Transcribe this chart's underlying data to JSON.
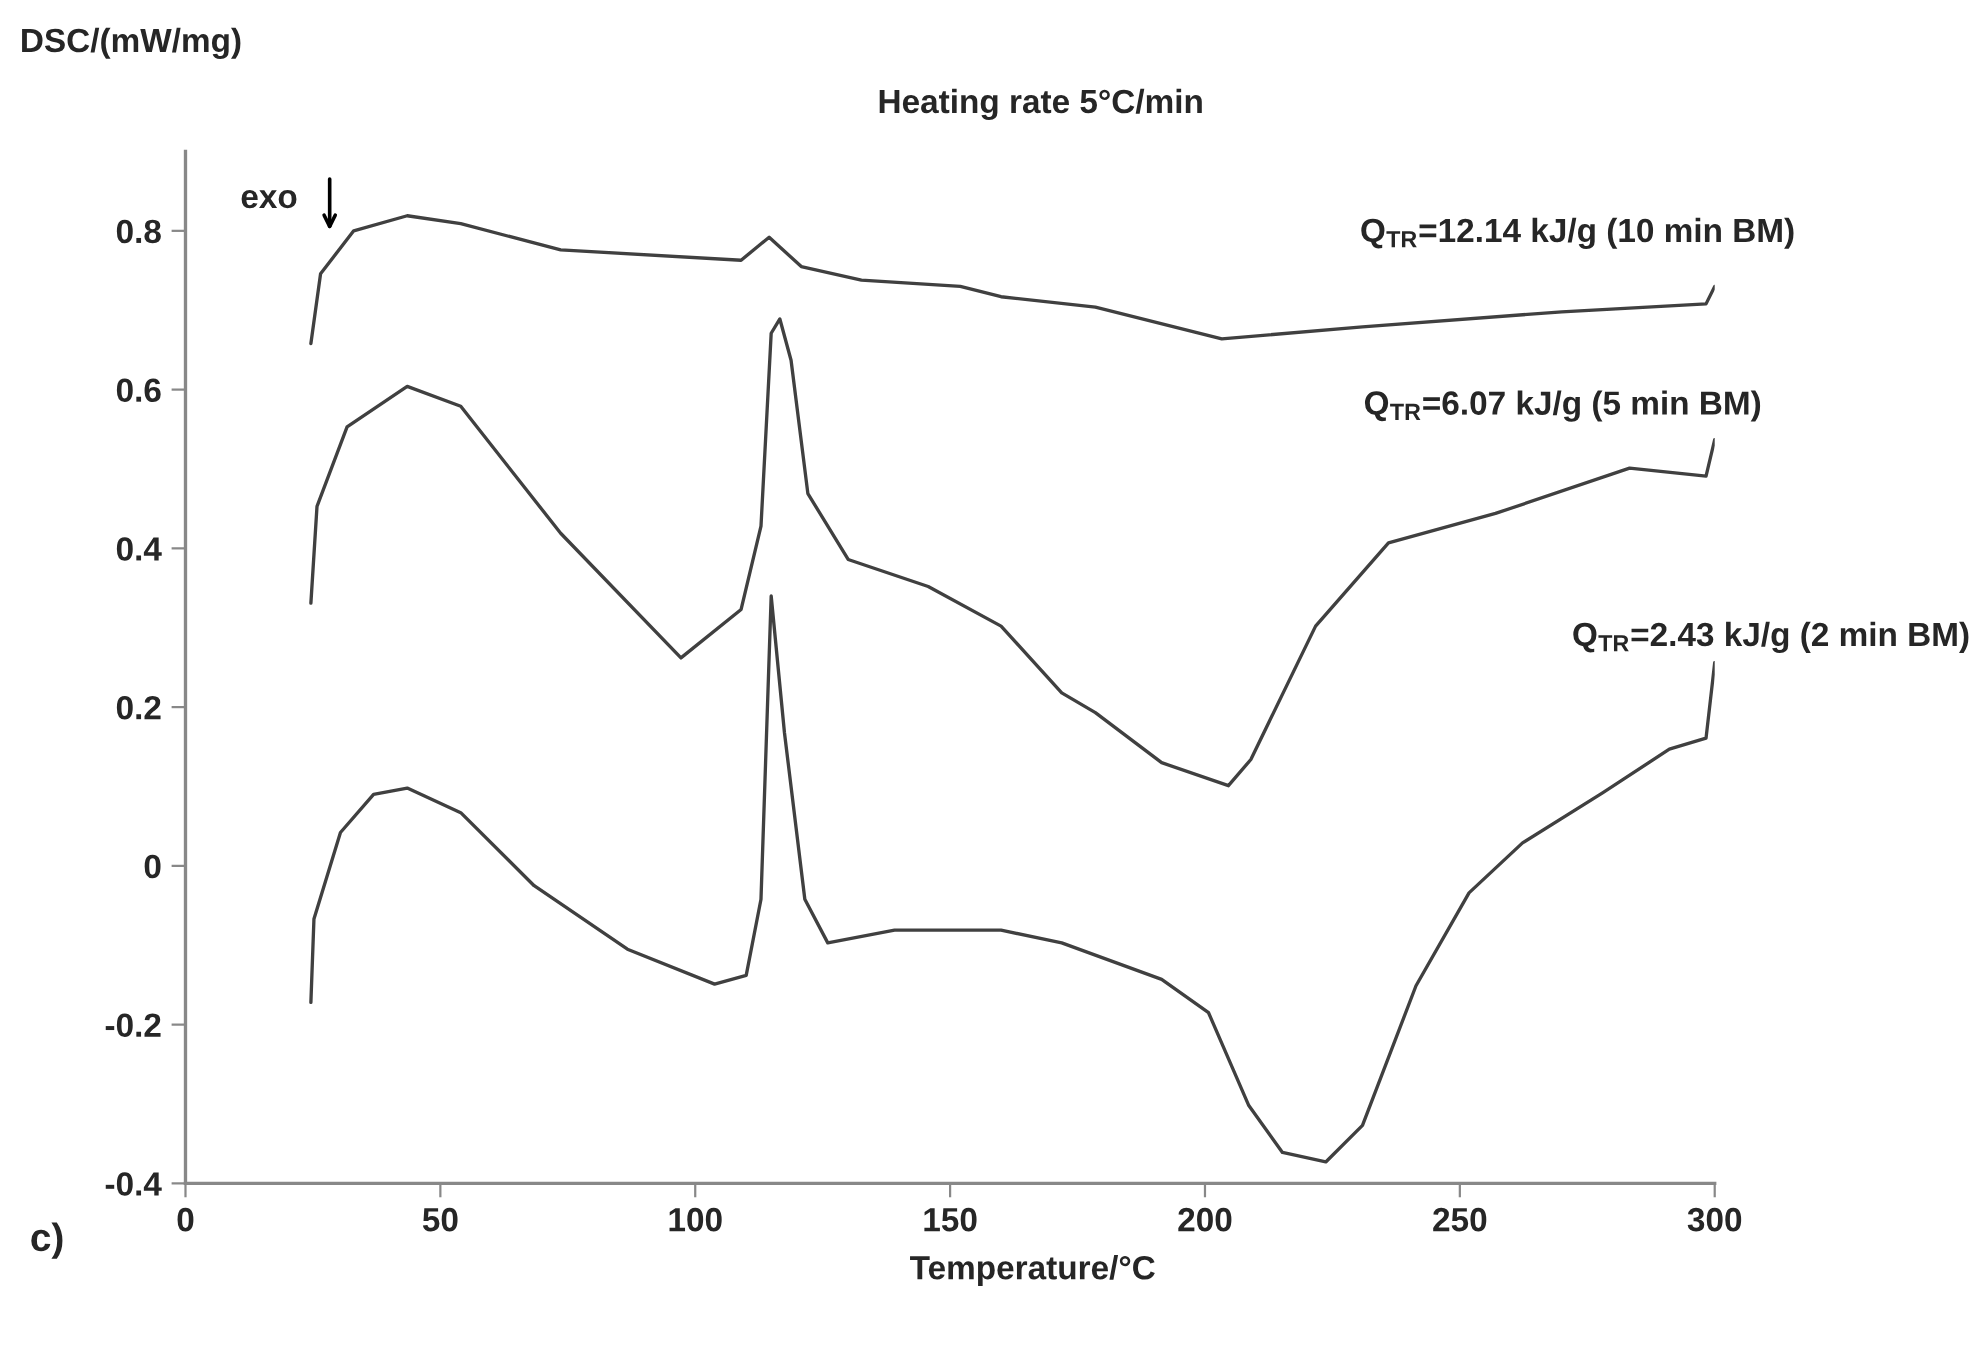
{
  "chart_data": {
    "type": "line",
    "title": "Heating rate 5°C/min",
    "xlabel": "Temperature/°C",
    "ylabel": "DSC/(mW/mg)",
    "annotations": [
      "exo",
      "c)"
    ],
    "xlim": [
      0,
      300
    ],
    "xticks": [
      0,
      50,
      100,
      150,
      200,
      250,
      300
    ],
    "ylim": [
      -0.4,
      0.9
    ],
    "yticks": [
      -0.4,
      -0.2,
      0,
      0.2,
      0.4,
      0.6,
      0.8
    ],
    "grid": false,
    "legend": false,
    "marker": "none",
    "line_style": "solid",
    "series": [
      {
        "name": "Q$_{TR}$=12.14 kJ/g (10 min BM)",
        "color": "#404040",
        "x": [
          24.6,
          26.5,
          33,
          43.5,
          54,
          73.6,
          109,
          114.5,
          120.8,
          132.6,
          152,
          160,
          178.5,
          203.3,
          230.9,
          270,
          298.3,
          300
        ],
        "values": [
          0.658,
          0.746,
          0.8,
          0.819,
          0.809,
          0.776,
          0.763,
          0.792,
          0.755,
          0.738,
          0.73,
          0.717,
          0.704,
          0.664,
          0.679,
          0.698,
          0.708,
          0.73
        ]
      },
      {
        "name": "Q$_{TR}$=6.07 kJ/g (5 min BM)",
        "color": "#404040",
        "x": [
          24.6,
          25.8,
          31.7,
          43.5,
          54,
          73.6,
          97.2,
          109,
          112.9,
          114.9,
          116.6,
          118.8,
          122.1,
          130,
          145.7,
          160,
          171.9,
          178.5,
          191.5,
          204.6,
          209,
          221.7,
          236,
          257,
          283.3,
          298.3,
          300
        ],
        "values": [
          0.331,
          0.453,
          0.553,
          0.604,
          0.579,
          0.419,
          0.262,
          0.323,
          0.428,
          0.671,
          0.689,
          0.637,
          0.469,
          0.386,
          0.352,
          0.302,
          0.218,
          0.193,
          0.13,
          0.101,
          0.134,
          0.302,
          0.407,
          0.444,
          0.501,
          0.491,
          0.537
        ]
      },
      {
        "name": "Q$_{TR}$=2.43 kJ/g (2 min BM)",
        "color": "#404040",
        "x": [
          24.6,
          25.2,
          30.4,
          36.9,
          43.5,
          54,
          68.4,
          86.7,
          103.8,
          110,
          112.9,
          114.9,
          117.5,
          121.5,
          126,
          139.1,
          160,
          171.9,
          191.5,
          200.7,
          208.6,
          215.2,
          223.7,
          230.9,
          241.4,
          251.8,
          262.3,
          278,
          291.1,
          298.3,
          300
        ],
        "values": [
          -0.172,
          -0.067,
          0.042,
          0.09,
          0.098,
          0.067,
          -0.025,
          -0.105,
          -0.149,
          -0.138,
          -0.042,
          0.34,
          0.168,
          -0.042,
          -0.097,
          -0.081,
          -0.081,
          -0.097,
          -0.143,
          -0.185,
          -0.302,
          -0.361,
          -0.373,
          -0.327,
          -0.151,
          -0.034,
          0.029,
          0.092,
          0.147,
          0.161,
          0.256
        ]
      }
    ]
  }
}
